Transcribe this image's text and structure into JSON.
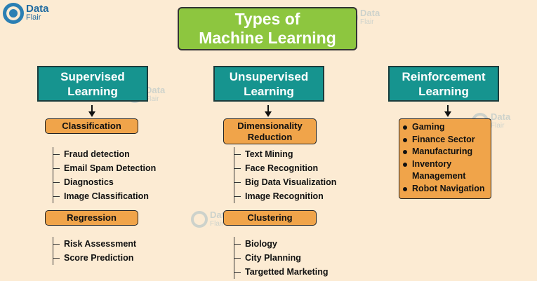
{
  "logo": {
    "line1": "Data",
    "line2": "Flair"
  },
  "title": {
    "line1": "Types of",
    "line2": "Machine Learning"
  },
  "supervised": {
    "title1": "Supervised",
    "title2": "Learning",
    "classification": {
      "label": "Classification",
      "items": [
        "Fraud detection",
        "Email Spam Detection",
        "Diagnostics",
        "Image Classification"
      ]
    },
    "regression": {
      "label": "Regression",
      "items": [
        "Risk Assessment",
        "Score Prediction"
      ]
    }
  },
  "unsupervised": {
    "title1": "Unsupervised",
    "title2": "Learning",
    "dimensionality": {
      "label1": "Dimensionality",
      "label2": "Reduction",
      "items": [
        "Text Mining",
        "Face Recognition",
        "Big Data Visualization",
        "Image Recognition"
      ]
    },
    "clustering": {
      "label": "Clustering",
      "items": [
        "Biology",
        "City Planning",
        "Targetted Marketing"
      ]
    }
  },
  "reinforcement": {
    "title1": "Reinforcement",
    "title2": "Learning",
    "items": [
      "Gaming",
      "Finance Sector",
      "Manufacturing",
      "Inventory",
      "Management",
      "Robot Navigation"
    ]
  },
  "colors": {
    "title_bg": "#8dc63f",
    "category_bg": "#16948f",
    "sub_bg": "#f0a44a",
    "page_bg": "#fcebd3",
    "logo": "#2b7fb3"
  }
}
